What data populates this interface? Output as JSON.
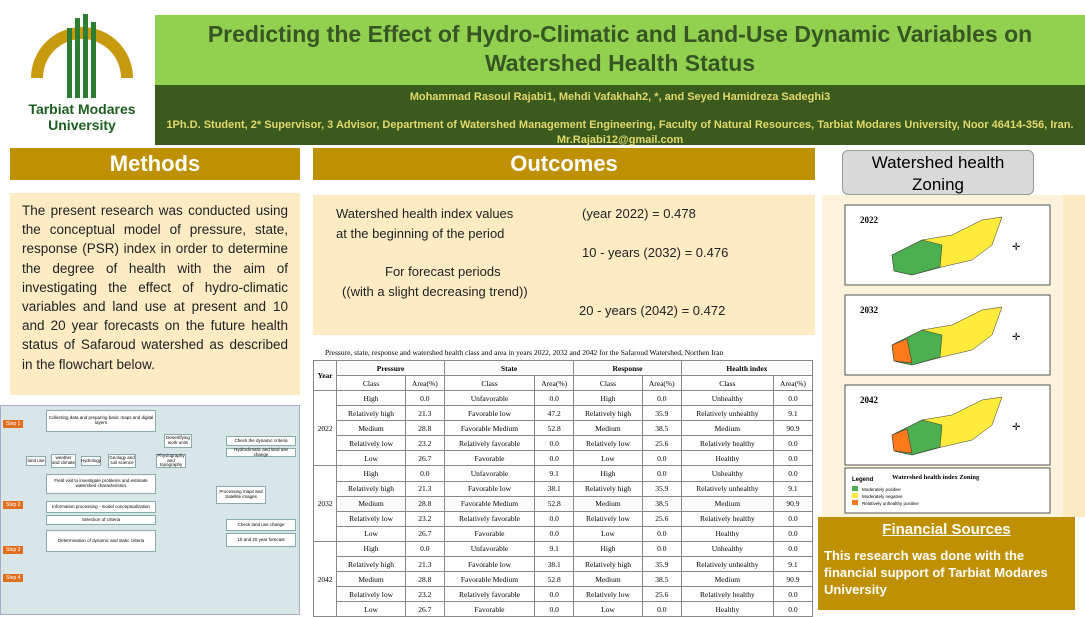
{
  "header": {
    "university": [
      "Tarbiat Modares",
      "University"
    ],
    "title": "Predicting the Effect of Hydro-Climatic and Land-Use Dynamic Variables on Watershed Health Status",
    "authors": "Mohammad Rasoul Rajabi1, Mehdi Vafakhah2, *, and Seyed Hamidreza Sadeghi3",
    "affiliation": "1Ph.D. Student, 2* Supervisor, 3 Advisor, Department of Watershed Management Engineering, Faculty of Natural Resources, Tarbiat Modares University, Noor 46414-356, Iran. Mr.Rajabi12@gmail.com"
  },
  "methods": {
    "heading": "Methods",
    "text": "The present research was conducted using the conceptual model of pressure, state, response (PSR) index in order to determine the degree of health with the aim of investigating the effect of hydro-climatic variables and land use at present and 10 and 20 year forecasts on the future health status of Safaroud watershed as described in the flowchart below.",
    "flowchart": {
      "steps": [
        "Step 1",
        "Step 2",
        "Step 3",
        "Step 4"
      ],
      "boxes": [
        "Collecting data and preparing basic maps and digital layers",
        "Field visit to investigate problems and estimate watershed characteristics",
        "Information processing - model conceptualization",
        "Selection of criteria",
        "Determination of dynamic and static criteria",
        "Check the dynamic criteria",
        "Hydroclimatic and land use change",
        "Check land use change",
        "10 and 20 year forecast",
        "Processing maps and Satellite images",
        "land use",
        "weather and climate",
        "Hydrology",
        "Geology and soil science",
        "Physiography and topography",
        "Desertifying work units"
      ]
    }
  },
  "outcomes": {
    "heading": "Outcomes",
    "lines": [
      "Watershed health index values",
      "at the beginning of the period",
      "(year 2022) = 0.478",
      "10  - years (2032) = 0.476",
      "For forecast periods",
      "((with a slight decreasing trend))",
      "20 - years (2042) = 0.472"
    ]
  },
  "table": {
    "caption": "Pressure, state, response and watershed health class and area in years 2022, 2032 and 2042 for the Safaroud Watershed, Northen Iran",
    "headers": [
      "Year",
      "Pressure",
      "State",
      "Response",
      "Health index"
    ],
    "subheaders": [
      "Class",
      "Area(%)",
      "Class",
      "Area(%)",
      "Class",
      "Area(%)",
      "Class",
      "Area(%)"
    ],
    "groups": [
      {
        "year": "2022",
        "rows": [
          [
            "High",
            "0.0",
            "Unfavorable",
            "0.0",
            "High",
            "0.0",
            "Unhealthy",
            "0.0"
          ],
          [
            "Relatively high",
            "21.3",
            "Favorable low",
            "47.2",
            "Relatively high",
            "35.9",
            "Relatively unhealthy",
            "9.1"
          ],
          [
            "Medium",
            "28.8",
            "Favorable Medium",
            "52.8",
            "Medium",
            "38.5",
            "Medium",
            "90.9"
          ],
          [
            "Relatively low",
            "23.2",
            "Relatively favorable",
            "0.0",
            "Relatively low",
            "25.6",
            "Relatively healthy",
            "0.0"
          ],
          [
            "Low",
            "26.7",
            "Favorable",
            "0.0",
            "Low",
            "0.0",
            "Healthy",
            "0.0"
          ]
        ]
      },
      {
        "year": "2032",
        "rows": [
          [
            "High",
            "0.0",
            "Unfavorable",
            "9.1",
            "High",
            "0.0",
            "Unhealthy",
            "0.0"
          ],
          [
            "Relatively high",
            "21.3",
            "Favorable low",
            "38.1",
            "Relatively high",
            "35.9",
            "Relatively unhealthy",
            "9.1"
          ],
          [
            "Medium",
            "28.8",
            "Favorable Medium",
            "52.8",
            "Medium",
            "38.5",
            "Medium",
            "90.9"
          ],
          [
            "Relatively low",
            "23.2",
            "Relatively favorable",
            "0.0",
            "Relatively low",
            "25.6",
            "Relatively healthy",
            "0.0"
          ],
          [
            "Low",
            "26.7",
            "Favorable",
            "0.0",
            "Low",
            "0.0",
            "Healthy",
            "0.0"
          ]
        ]
      },
      {
        "year": "2042",
        "rows": [
          [
            "High",
            "0.0",
            "Unfavorable",
            "9.1",
            "High",
            "0.0",
            "Unhealthy",
            "0.0"
          ],
          [
            "Relatively high",
            "21.3",
            "Favorable low",
            "38.1",
            "Relatively high",
            "35.9",
            "Relatively unhealthy",
            "9.1"
          ],
          [
            "Medium",
            "28.8",
            "Favorable Medium",
            "52.8",
            "Medium",
            "38.5",
            "Medium",
            "90.9"
          ],
          [
            "Relatively low",
            "23.2",
            "Relatively favorable",
            "0.0",
            "Relatively low",
            "25.6",
            "Relatively healthy",
            "0.0"
          ],
          [
            "Low",
            "26.7",
            "Favorable",
            "0.0",
            "Low",
            "0.0",
            "Healthy",
            "0.0"
          ]
        ]
      }
    ]
  },
  "zoning": {
    "heading": "Watershed health Zoning",
    "years": [
      "2022",
      "2032",
      "2042"
    ],
    "legend_title": "Legend",
    "legend_caption": "Watershed health index Zoning",
    "legend_items": [
      "Moderately positive",
      "Moderately negative",
      "Relatively unhealthy positive"
    ]
  },
  "financial": {
    "heading": "Financial Sources",
    "text": "This research was done with the financial support of Tarbiat Modares University"
  }
}
